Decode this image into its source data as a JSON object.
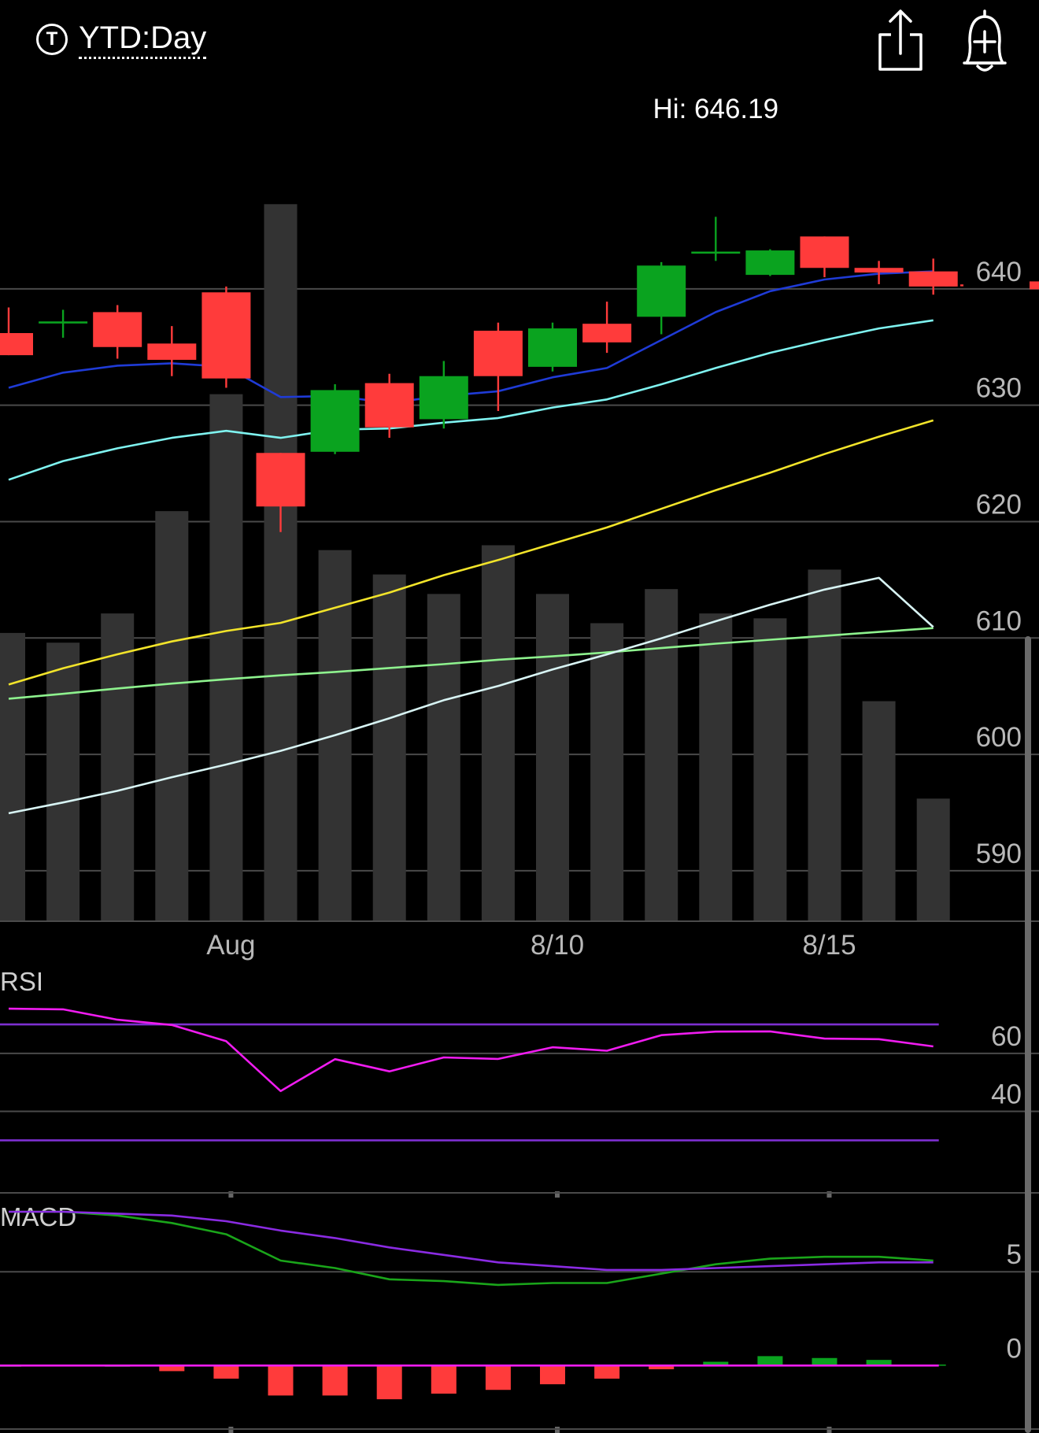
{
  "header": {
    "ticker_icon": "T",
    "title": "YTD:Day",
    "share_icon": "share-icon",
    "alert_icon": "add-alert-bell-icon"
  },
  "chart_data": [
    {
      "type": "candlestick",
      "panel": "price",
      "annotation": "Hi: 646.19",
      "y_ticks": [
        640,
        630,
        620,
        610,
        600,
        590
      ],
      "ylim": [
        583.5,
        659
      ],
      "x_tick_labels": [
        {
          "label": "Aug",
          "index": 4
        },
        {
          "label": "8/10",
          "index": 10
        },
        {
          "label": "8/15",
          "index": 15
        }
      ],
      "candles": [
        {
          "o": 636.2,
          "h": 638.4,
          "l": 634.3,
          "c": 634.3
        },
        {
          "o": 637.2,
          "h": 638.2,
          "l": 635.8,
          "c": 637.2
        },
        {
          "o": 638.0,
          "h": 638.6,
          "l": 634.0,
          "c": 635.0
        },
        {
          "o": 635.3,
          "h": 636.8,
          "l": 632.5,
          "c": 633.9
        },
        {
          "o": 639.7,
          "h": 640.2,
          "l": 631.5,
          "c": 632.3
        },
        {
          "o": 625.9,
          "h": 625.9,
          "l": 619.1,
          "c": 621.3
        },
        {
          "o": 626.0,
          "h": 631.8,
          "l": 625.8,
          "c": 631.3
        },
        {
          "o": 631.9,
          "h": 632.7,
          "l": 627.2,
          "c": 628.1
        },
        {
          "o": 628.8,
          "h": 633.8,
          "l": 628.0,
          "c": 632.5
        },
        {
          "o": 636.4,
          "h": 637.1,
          "l": 629.5,
          "c": 632.5
        },
        {
          "o": 633.3,
          "h": 637.1,
          "l": 632.9,
          "c": 636.6
        },
        {
          "o": 637.0,
          "h": 638.9,
          "l": 634.5,
          "c": 635.4
        },
        {
          "o": 637.6,
          "h": 642.3,
          "l": 636.1,
          "c": 642.0
        },
        {
          "o": 643.2,
          "h": 646.19,
          "l": 642.4,
          "c": 643.2
        },
        {
          "o": 641.2,
          "h": 643.4,
          "l": 641.1,
          "c": 643.3
        },
        {
          "o": 644.5,
          "h": 644.5,
          "l": 641.0,
          "c": 641.8
        },
        {
          "o": 641.8,
          "h": 642.4,
          "l": 640.4,
          "c": 641.4
        },
        {
          "o": 641.5,
          "h": 642.6,
          "l": 639.5,
          "c": 640.2
        }
      ],
      "last_price": 640.3,
      "moving_averages": [
        {
          "color": "#1f3bd6",
          "values": [
            631.5,
            632.8,
            633.4,
            633.6,
            633.3,
            630.7,
            630.8,
            630.2,
            630.8,
            631.2,
            632.4,
            633.2,
            635.6,
            638.0,
            639.8,
            640.8,
            641.3,
            641.5
          ]
        },
        {
          "color": "#7ff3f0",
          "values": [
            623.6,
            625.2,
            626.3,
            627.2,
            627.8,
            627.2,
            627.9,
            628.0,
            628.5,
            628.9,
            629.8,
            630.5,
            631.8,
            633.2,
            634.5,
            635.6,
            636.6,
            637.3
          ]
        },
        {
          "color": "#f2e42a",
          "values": [
            606.0,
            607.4,
            608.6,
            609.7,
            610.6,
            611.3,
            612.6,
            613.9,
            615.4,
            616.7,
            618.1,
            619.5,
            621.1,
            622.7,
            624.2,
            625.8,
            627.3,
            628.7
          ]
        }
      ]
    },
    {
      "type": "bar",
      "panel": "volume",
      "values": [
        59,
        57,
        63,
        84,
        108,
        147,
        76,
        71,
        67,
        77,
        67,
        61,
        68,
        63,
        62,
        72,
        45,
        25
      ],
      "ylim": [
        0,
        175
      ],
      "moving_averages": [
        {
          "color": "#8ef28e",
          "values": [
            45.5,
            46.5,
            47.6,
            48.6,
            49.5,
            50.3,
            51.0,
            51.8,
            52.6,
            53.5,
            54.2,
            55.0,
            55.9,
            56.8,
            57.6,
            58.4,
            59.2,
            60.0
          ]
        },
        {
          "color": "#d8f4f4",
          "values": [
            22.0,
            24.2,
            26.6,
            29.4,
            32.0,
            34.8,
            38.0,
            41.5,
            45.2,
            48.1,
            51.5,
            54.6,
            57.9,
            61.4,
            64.8,
            67.9,
            70.3,
            60.2
          ]
        }
      ]
    },
    {
      "type": "line",
      "panel": "indicator",
      "label": "RSI",
      "y_ticks": [
        60,
        40
      ],
      "ylim": [
        10,
        92
      ],
      "bands": [
        {
          "value": 70,
          "color": "#7d2fd0"
        },
        {
          "value": 30,
          "color": "#7d2fd0"
        }
      ],
      "series": [
        {
          "color": "#f01cf0",
          "values": [
            75.4,
            75.2,
            71.6,
            69.8,
            64.2,
            47.0,
            58.0,
            53.8,
            58.6,
            58.1,
            62.1,
            60.9,
            66.3,
            67.5,
            67.6,
            65.1,
            64.9,
            62.4
          ]
        }
      ]
    },
    {
      "type": "bar+line",
      "panel": "indicator",
      "label": "MACD",
      "y_ticks": [
        5,
        0
      ],
      "ylim": [
        -3.6,
        9
      ],
      "zero_line_color": "#f01cf0",
      "series": [
        {
          "color": "#1aa51a",
          "values": [
            8.2,
            8.2,
            8.0,
            7.6,
            7.0,
            5.6,
            5.2,
            4.6,
            4.5,
            4.3,
            4.4,
            4.4,
            4.9,
            5.4,
            5.7,
            5.8,
            5.8,
            5.6
          ]
        },
        {
          "color": "#8a2be2",
          "values": [
            8.2,
            8.2,
            8.1,
            8.0,
            7.7,
            7.2,
            6.8,
            6.3,
            5.9,
            5.5,
            5.3,
            5.1,
            5.1,
            5.2,
            5.3,
            5.4,
            5.5,
            5.5
          ]
        }
      ],
      "histogram": [
        0,
        0.05,
        0,
        -0.3,
        -0.7,
        -1.6,
        -1.6,
        -1.8,
        -1.5,
        -1.3,
        -1.0,
        -0.7,
        -0.2,
        0.2,
        0.5,
        0.4,
        0.3,
        0.05
      ]
    }
  ]
}
